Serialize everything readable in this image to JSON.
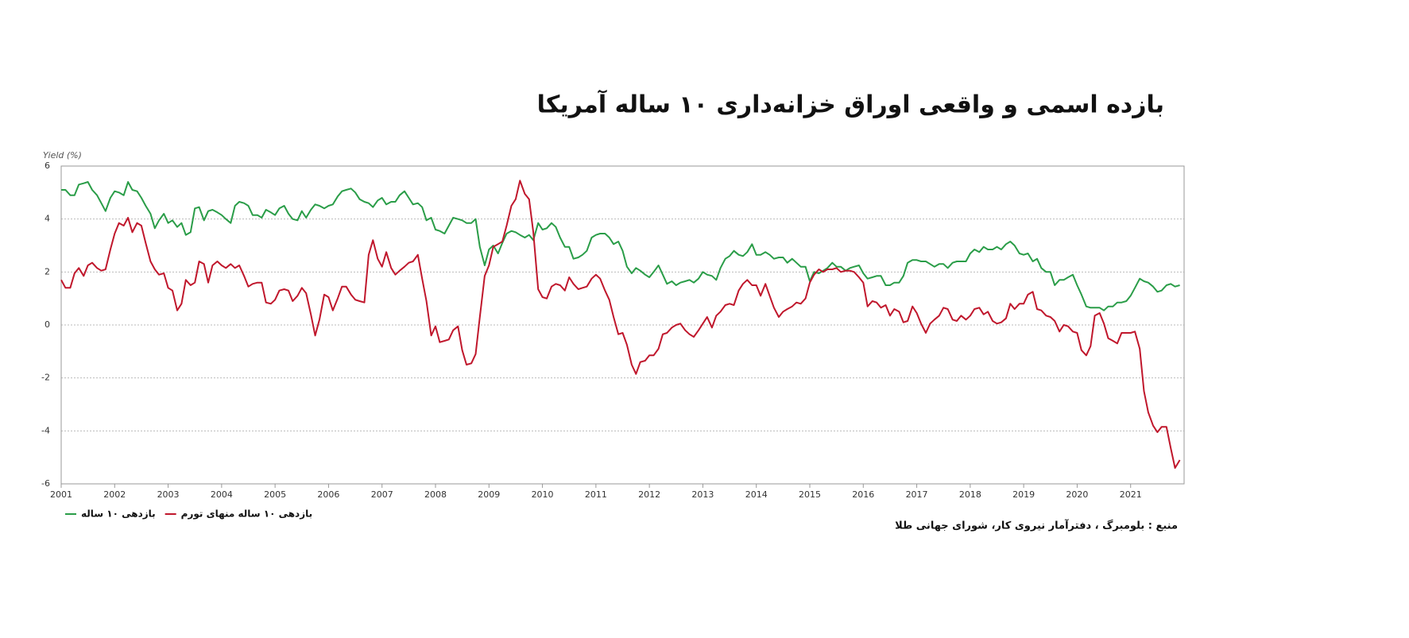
{
  "chart_data": {
    "type": "line",
    "title": "بازده اسمی و واقعی اوراق خزانه‌داری ۱۰ ساله آمریکا",
    "y_label": "Yield (%)",
    "source": "منبع : بلومبرگ ، دفترآمار نیروی کار، شورای جهانی طلا",
    "xlim": [
      2001,
      2022
    ],
    "xticks": [
      2001,
      2002,
      2003,
      2004,
      2005,
      2006,
      2007,
      2008,
      2009,
      2010,
      2011,
      2012,
      2013,
      2014,
      2015,
      2016,
      2017,
      2018,
      2019,
      2020,
      2021
    ],
    "ylim": [
      -6,
      6
    ],
    "yticks": [
      -6,
      -4,
      -2,
      0,
      2,
      4,
      6
    ],
    "grid": true,
    "legend": "bottom-left",
    "x": [
      2001,
      2001.08,
      2001.17,
      2001.25,
      2001.33,
      2001.42,
      2001.5,
      2001.58,
      2001.67,
      2001.75,
      2001.83,
      2001.92,
      2002,
      2002.08,
      2002.17,
      2002.25,
      2002.33,
      2002.42,
      2002.5,
      2002.58,
      2002.67,
      2002.75,
      2002.83,
      2002.92,
      2003,
      2003.08,
      2003.17,
      2003.25,
      2003.33,
      2003.42,
      2003.5,
      2003.58,
      2003.67,
      2003.75,
      2003.83,
      2003.92,
      2004,
      2004.08,
      2004.17,
      2004.25,
      2004.33,
      2004.42,
      2004.5,
      2004.58,
      2004.67,
      2004.75,
      2004.83,
      2004.92,
      2005,
      2005.08,
      2005.17,
      2005.25,
      2005.33,
      2005.42,
      2005.5,
      2005.58,
      2005.67,
      2005.75,
      2005.83,
      2005.92,
      2006,
      2006.08,
      2006.17,
      2006.25,
      2006.33,
      2006.42,
      2006.5,
      2006.58,
      2006.67,
      2006.75,
      2006.83,
      2006.92,
      2007,
      2007.08,
      2007.17,
      2007.25,
      2007.33,
      2007.42,
      2007.5,
      2007.58,
      2007.67,
      2007.75,
      2007.83,
      2007.92,
      2008,
      2008.08,
      2008.17,
      2008.25,
      2008.33,
      2008.42,
      2008.5,
      2008.58,
      2008.67,
      2008.75,
      2008.83,
      2008.92,
      2009,
      2009.08,
      2009.17,
      2009.25,
      2009.33,
      2009.42,
      2009.5,
      2009.58,
      2009.67,
      2009.75,
      2009.83,
      2009.92,
      2010,
      2010.08,
      2010.17,
      2010.25,
      2010.33,
      2010.42,
      2010.5,
      2010.58,
      2010.67,
      2010.75,
      2010.83,
      2010.92,
      2011,
      2011.08,
      2011.17,
      2011.25,
      2011.33,
      2011.42,
      2011.5,
      2011.58,
      2011.67,
      2011.75,
      2011.83,
      2011.92,
      2012,
      2012.08,
      2012.17,
      2012.25,
      2012.33,
      2012.42,
      2012.5,
      2012.58,
      2012.67,
      2012.75,
      2012.83,
      2012.92,
      2013,
      2013.08,
      2013.17,
      2013.25,
      2013.33,
      2013.42,
      2013.5,
      2013.58,
      2013.67,
      2013.75,
      2013.83,
      2013.92,
      2014,
      2014.08,
      2014.17,
      2014.25,
      2014.33,
      2014.42,
      2014.5,
      2014.58,
      2014.67,
      2014.75,
      2014.83,
      2014.92,
      2015,
      2015.08,
      2015.17,
      2015.25,
      2015.33,
      2015.42,
      2015.5,
      2015.58,
      2015.67,
      2015.75,
      2015.83,
      2015.92,
      2016,
      2016.08,
      2016.17,
      2016.25,
      2016.33,
      2016.42,
      2016.5,
      2016.58,
      2016.67,
      2016.75,
      2016.83,
      2016.92,
      2017,
      2017.08,
      2017.17,
      2017.25,
      2017.33,
      2017.42,
      2017.5,
      2017.58,
      2017.67,
      2017.75,
      2017.83,
      2017.92,
      2018,
      2018.08,
      2018.17,
      2018.25,
      2018.33,
      2018.42,
      2018.5,
      2018.58,
      2018.67,
      2018.75,
      2018.83,
      2018.92,
      2019,
      2019.08,
      2019.17,
      2019.25,
      2019.33,
      2019.42,
      2019.5,
      2019.58,
      2019.67,
      2019.75,
      2019.83,
      2019.92,
      2020,
      2020.08,
      2020.17,
      2020.25,
      2020.33,
      2020.42,
      2020.5,
      2020.58,
      2020.67,
      2020.75,
      2020.83,
      2020.92,
      2021,
      2021.08,
      2021.17,
      2021.25,
      2021.33,
      2021.42,
      2021.5,
      2021.58,
      2021.67,
      2021.75,
      2021.83,
      2021.92
    ],
    "series": [
      {
        "name": "بازدهی ۱۰ ساله",
        "color": "#2a9d48",
        "values": [
          5.1,
          5.1,
          4.9,
          4.9,
          5.3,
          5.35,
          5.4,
          5.1,
          4.9,
          4.6,
          4.3,
          4.8,
          5.05,
          5.0,
          4.9,
          5.4,
          5.1,
          5.05,
          4.8,
          4.5,
          4.2,
          3.65,
          3.95,
          4.2,
          3.85,
          3.95,
          3.7,
          3.85,
          3.4,
          3.5,
          4.4,
          4.45,
          3.95,
          4.3,
          4.35,
          4.25,
          4.15,
          4.0,
          3.85,
          4.5,
          4.65,
          4.6,
          4.5,
          4.15,
          4.15,
          4.05,
          4.35,
          4.25,
          4.15,
          4.4,
          4.5,
          4.2,
          4.0,
          3.95,
          4.3,
          4.05,
          4.35,
          4.55,
          4.5,
          4.4,
          4.5,
          4.55,
          4.85,
          5.05,
          5.1,
          5.15,
          5.0,
          4.75,
          4.65,
          4.6,
          4.45,
          4.7,
          4.8,
          4.55,
          4.65,
          4.65,
          4.9,
          5.05,
          4.8,
          4.55,
          4.6,
          4.45,
          3.95,
          4.05,
          3.6,
          3.55,
          3.45,
          3.75,
          4.05,
          4.0,
          3.95,
          3.85,
          3.85,
          4.0,
          2.95,
          2.25,
          2.85,
          3.0,
          2.7,
          3.1,
          3.45,
          3.55,
          3.5,
          3.4,
          3.3,
          3.4,
          3.2,
          3.85,
          3.6,
          3.65,
          3.85,
          3.7,
          3.3,
          2.95,
          2.95,
          2.5,
          2.55,
          2.65,
          2.8,
          3.3,
          3.4,
          3.45,
          3.45,
          3.3,
          3.05,
          3.15,
          2.8,
          2.2,
          1.95,
          2.15,
          2.05,
          1.9,
          1.8,
          2.0,
          2.25,
          1.9,
          1.55,
          1.65,
          1.5,
          1.6,
          1.65,
          1.7,
          1.6,
          1.75,
          2.0,
          1.9,
          1.85,
          1.7,
          2.15,
          2.5,
          2.6,
          2.8,
          2.65,
          2.6,
          2.75,
          3.05,
          2.65,
          2.65,
          2.75,
          2.65,
          2.5,
          2.55,
          2.55,
          2.35,
          2.5,
          2.35,
          2.2,
          2.2,
          1.65,
          2.0,
          1.95,
          2.05,
          2.15,
          2.35,
          2.2,
          2.2,
          2.05,
          2.15,
          2.2,
          2.25,
          1.95,
          1.75,
          1.8,
          1.85,
          1.85,
          1.5,
          1.5,
          1.6,
          1.6,
          1.85,
          2.35,
          2.45,
          2.45,
          2.4,
          2.4,
          2.3,
          2.2,
          2.3,
          2.3,
          2.15,
          2.35,
          2.4,
          2.4,
          2.4,
          2.7,
          2.85,
          2.75,
          2.95,
          2.85,
          2.85,
          2.95,
          2.85,
          3.05,
          3.15,
          3.0,
          2.7,
          2.65,
          2.7,
          2.4,
          2.5,
          2.15,
          2.0,
          2.0,
          1.5,
          1.7,
          1.7,
          1.8,
          1.9,
          1.5,
          1.15,
          0.7,
          0.65,
          0.65,
          0.65,
          0.55,
          0.7,
          0.7,
          0.85,
          0.85,
          0.9,
          1.1,
          1.4,
          1.75,
          1.65,
          1.6,
          1.45,
          1.25,
          1.3,
          1.5,
          1.55,
          1.45,
          1.5
        ]
      },
      {
        "name": "بازدهی ۱۰ ساله منهای تورم",
        "color": "#c0172c",
        "values": [
          1.7,
          1.4,
          1.4,
          1.95,
          2.15,
          1.85,
          2.25,
          2.35,
          2.15,
          2.05,
          2.1,
          2.85,
          3.45,
          3.85,
          3.75,
          4.05,
          3.5,
          3.85,
          3.75,
          3.1,
          2.4,
          2.1,
          1.9,
          1.95,
          1.4,
          1.3,
          0.55,
          0.8,
          1.7,
          1.5,
          1.6,
          2.4,
          2.3,
          1.6,
          2.25,
          2.4,
          2.25,
          2.15,
          2.3,
          2.15,
          2.25,
          1.85,
          1.45,
          1.55,
          1.6,
          1.6,
          0.85,
          0.8,
          0.95,
          1.3,
          1.35,
          1.3,
          0.9,
          1.1,
          1.4,
          1.2,
          0.4,
          -0.4,
          0.2,
          1.15,
          1.05,
          0.55,
          1.0,
          1.45,
          1.45,
          1.15,
          0.95,
          0.9,
          0.85,
          2.65,
          3.2,
          2.5,
          2.2,
          2.75,
          2.15,
          1.9,
          2.05,
          2.2,
          2.35,
          2.4,
          2.65,
          1.75,
          0.9,
          -0.4,
          -0.05,
          -0.65,
          -0.6,
          -0.55,
          -0.2,
          -0.05,
          -0.95,
          -1.5,
          -1.45,
          -1.1,
          0.3,
          1.85,
          2.25,
          2.95,
          3.05,
          3.15,
          3.75,
          4.5,
          4.75,
          5.45,
          4.95,
          4.75,
          3.5,
          1.35,
          1.05,
          1.0,
          1.45,
          1.55,
          1.5,
          1.3,
          1.8,
          1.55,
          1.35,
          1.4,
          1.45,
          1.75,
          1.9,
          1.75,
          1.3,
          0.95,
          0.3,
          -0.35,
          -0.3,
          -0.75,
          -1.5,
          -1.85,
          -1.4,
          -1.35,
          -1.15,
          -1.15,
          -0.9,
          -0.35,
          -0.3,
          -0.1,
          0.0,
          0.05,
          -0.2,
          -0.35,
          -0.45,
          -0.2,
          0.05,
          0.3,
          -0.1,
          0.35,
          0.5,
          0.75,
          0.8,
          0.75,
          1.3,
          1.55,
          1.7,
          1.5,
          1.5,
          1.1,
          1.55,
          1.1,
          0.65,
          0.3,
          0.5,
          0.6,
          0.7,
          0.85,
          0.8,
          1.0,
          1.6,
          1.9,
          2.1,
          2.0,
          2.1,
          2.1,
          2.15,
          2.0,
          2.05,
          2.05,
          2.0,
          1.8,
          1.6,
          0.7,
          0.9,
          0.85,
          0.65,
          0.75,
          0.35,
          0.6,
          0.5,
          0.1,
          0.15,
          0.7,
          0.45,
          0.05,
          -0.3,
          0.05,
          0.2,
          0.35,
          0.65,
          0.6,
          0.2,
          0.15,
          0.35,
          0.2,
          0.35,
          0.6,
          0.65,
          0.4,
          0.5,
          0.15,
          0.05,
          0.1,
          0.25,
          0.8,
          0.6,
          0.8,
          0.8,
          1.15,
          1.25,
          0.6,
          0.55,
          0.35,
          0.3,
          0.15,
          -0.25,
          0.0,
          -0.05,
          -0.25,
          -0.3,
          -0.95,
          -1.15,
          -0.8,
          0.35,
          0.45,
          0.05,
          -0.5,
          -0.6,
          -0.7,
          -0.3,
          -0.3,
          -0.3,
          -0.25,
          -0.9,
          -2.5,
          -3.3,
          -3.8,
          -4.05,
          -3.85,
          -3.85,
          -4.65,
          -5.4,
          -5.1
        ]
      }
    ]
  }
}
